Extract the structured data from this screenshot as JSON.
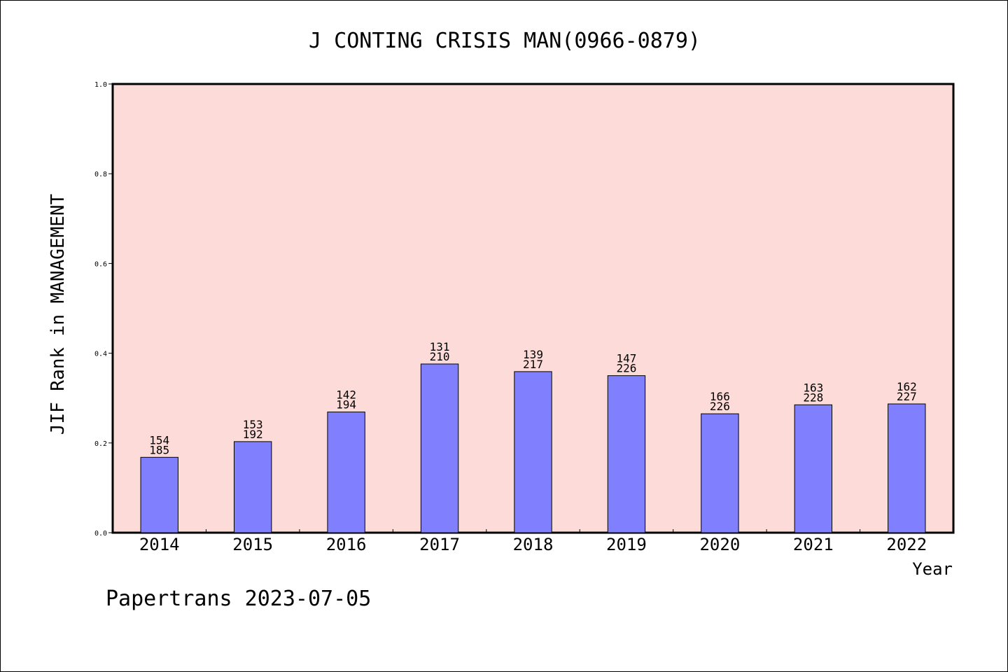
{
  "chart_data": {
    "type": "bar",
    "title": "J CONTING CRISIS MAN(0966-0879)",
    "xlabel": "Year",
    "ylabel": "JIF Rank in MANAGEMENT",
    "ylim": [
      0,
      1.0
    ],
    "yticks": [
      "0.0",
      "0.2",
      "0.4",
      "0.6",
      "0.8",
      "1.0"
    ],
    "grid": false,
    "categories": [
      "2014",
      "2015",
      "2016",
      "2017",
      "2018",
      "2019",
      "2020",
      "2021",
      "2022"
    ],
    "values": [
      0.168,
      0.203,
      0.269,
      0.376,
      0.359,
      0.35,
      0.265,
      0.285,
      0.287
    ],
    "rank_labels": [
      [
        "154",
        "185"
      ],
      [
        "153",
        "192"
      ],
      [
        "142",
        "194"
      ],
      [
        "131",
        "210"
      ],
      [
        "139",
        "217"
      ],
      [
        "147",
        "226"
      ],
      [
        "166",
        "226"
      ],
      [
        "163",
        "228"
      ],
      [
        "162",
        "227"
      ]
    ],
    "colors": {
      "plot_background": "#fddbd8",
      "bar_fill": "#8080ff",
      "bar_edge": "#000000"
    }
  },
  "footer": "Papertrans 2023-07-05"
}
